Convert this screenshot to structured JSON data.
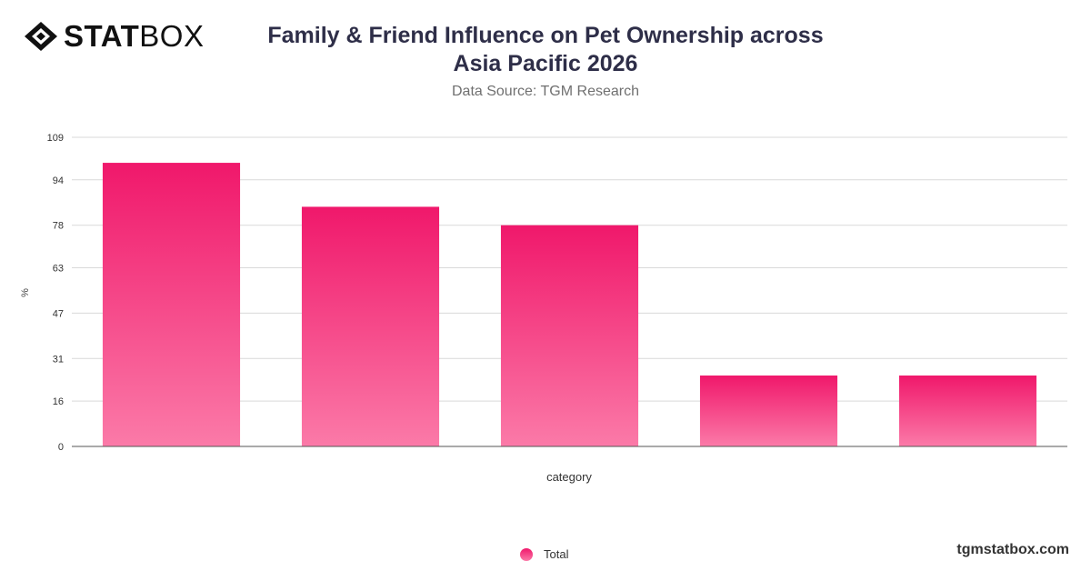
{
  "logo": {
    "text_bold": "STAT",
    "text_light": "BOX",
    "icon": "diamond-logo-icon"
  },
  "header": {
    "title_line1": "Family & Friend Influence on Pet Ownership across",
    "title_line2": "Asia Pacific 2026",
    "subtitle": "Data Source: TGM Research"
  },
  "footer": {
    "site": "tgmstatbox.com"
  },
  "colors": {
    "bar_top": "#f0186b",
    "bar_bottom": "#fb7aa8",
    "grid": "#d9d9d9",
    "title": "#2e2e48"
  },
  "chart_data": {
    "type": "bar",
    "title": "Family & Friend Influence on Pet Ownership across Asia Pacific 2026",
    "subtitle": "Data Source: TGM Research",
    "xlabel": "category",
    "ylabel": "%",
    "categories": [
      "",
      "",
      "",
      "",
      ""
    ],
    "yticks": [
      0,
      16,
      31,
      47,
      63,
      78,
      94,
      109
    ],
    "ylim": [
      0,
      109
    ],
    "grid": true,
    "legend_position": "bottom",
    "series": [
      {
        "name": "Total",
        "values": [
          100,
          84.5,
          78,
          25,
          25
        ]
      }
    ]
  }
}
